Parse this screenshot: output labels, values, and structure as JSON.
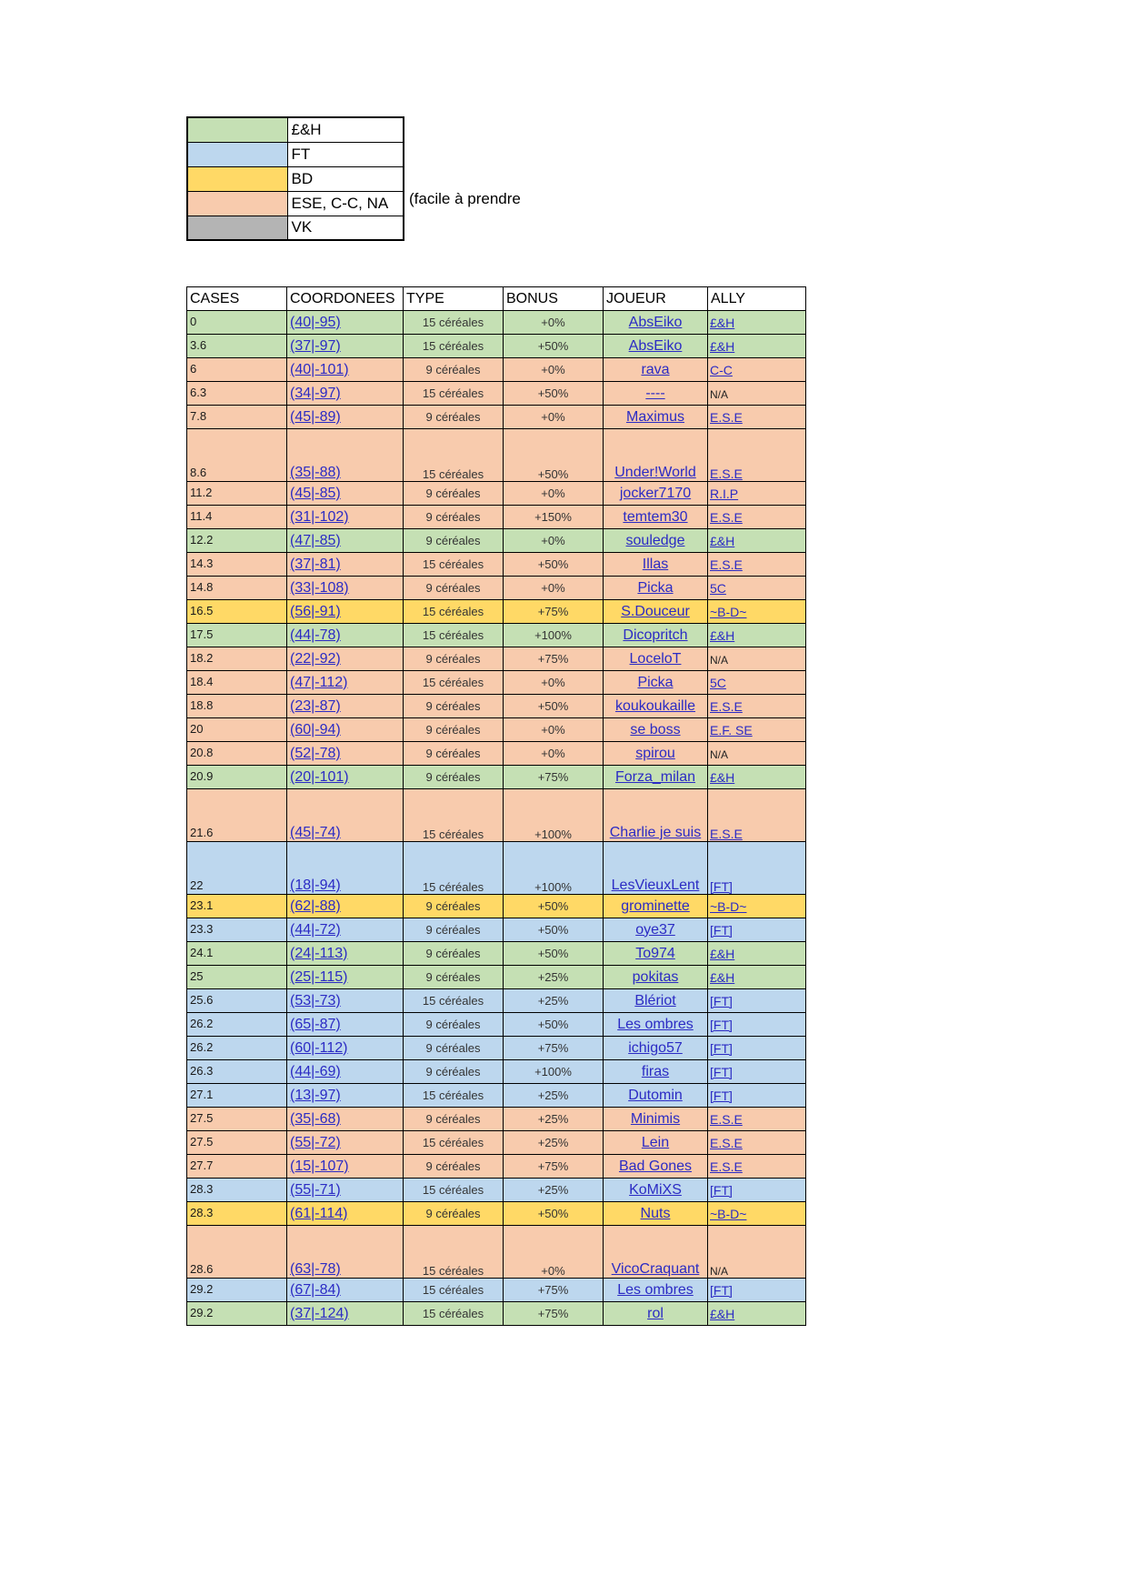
{
  "colors": {
    "green": "#c5e0b4",
    "blue": "#bdd7ee",
    "yellow": "#ffd966",
    "orange": "#f8cbad",
    "gray": "#b4b4b4",
    "link": "#2b2bc4",
    "border": "#000000"
  },
  "legend": {
    "note": "(facile à prendre",
    "items": [
      {
        "label": "£&H",
        "color": "green"
      },
      {
        "label": "FT",
        "color": "blue"
      },
      {
        "label": "BD",
        "color": "yellow"
      },
      {
        "label": "ESE, C-C, NA",
        "color": "orange"
      },
      {
        "label": "VK",
        "color": "gray"
      }
    ]
  },
  "table": {
    "columns": [
      "CASES",
      "COORDONEES",
      "TYPE",
      "BONUS",
      "JOUEUR",
      "ALLY"
    ],
    "rows": [
      {
        "cases": "0",
        "coord": "(40|-95)",
        "type": "15 céréales",
        "bonus": "+0%",
        "joueur": "AbsEiko",
        "ally": "£&H",
        "color": "green",
        "tall": false
      },
      {
        "cases": "3.6",
        "coord": "(37|-97)",
        "type": "15 céréales",
        "bonus": "+50%",
        "joueur": "AbsEiko",
        "ally": "£&H",
        "color": "green",
        "tall": false
      },
      {
        "cases": "6",
        "coord": "(40|-101)",
        "type": "9 céréales",
        "bonus": "+0%",
        "joueur": "rava",
        "ally": "C-C",
        "color": "orange",
        "tall": false
      },
      {
        "cases": "6.3",
        "coord": "(34|-97)",
        "type": "15 céréales",
        "bonus": "+50%",
        "joueur": "----",
        "ally": "N/A",
        "color": "orange",
        "tall": false
      },
      {
        "cases": "7.8",
        "coord": "(45|-89)",
        "type": "9 céréales",
        "bonus": "+0%",
        "joueur": "Maximus",
        "ally": "E.S.E",
        "color": "orange",
        "tall": false
      },
      {
        "cases": "8.6",
        "coord": "(35|-88)",
        "type": "15 céréales",
        "bonus": "+50%",
        "joueur": "Under!World",
        "ally": "E.S.E",
        "color": "orange",
        "tall": true
      },
      {
        "cases": "11.2",
        "coord": "(45|-85)",
        "type": "9 céréales",
        "bonus": "+0%",
        "joueur": "jocker7170",
        "ally": "R.I.P",
        "color": "orange",
        "tall": false
      },
      {
        "cases": "11.4",
        "coord": "(31|-102)",
        "type": "9 céréales",
        "bonus": "+150%",
        "joueur": "temtem30",
        "ally": "E.S.E",
        "color": "orange",
        "tall": false
      },
      {
        "cases": "12.2",
        "coord": "(47|-85)",
        "type": "9 céréales",
        "bonus": "+0%",
        "joueur": "souledge",
        "ally": "£&H",
        "color": "green",
        "tall": false
      },
      {
        "cases": "14.3",
        "coord": "(37|-81)",
        "type": "15 céréales",
        "bonus": "+50%",
        "joueur": "Illas",
        "ally": "E.S.E",
        "color": "orange",
        "tall": false
      },
      {
        "cases": "14.8",
        "coord": "(33|-108)",
        "type": "9 céréales",
        "bonus": "+0%",
        "joueur": "Picka",
        "ally": "5C",
        "color": "orange",
        "tall": false
      },
      {
        "cases": "16.5",
        "coord": "(56|-91)",
        "type": "15 céréales",
        "bonus": "+75%",
        "joueur": "S.Douceur",
        "ally": "~B-D~",
        "color": "yellow",
        "tall": false
      },
      {
        "cases": "17.5",
        "coord": "(44|-78)",
        "type": "15 céréales",
        "bonus": "+100%",
        "joueur": "Dicopritch",
        "ally": "£&H",
        "color": "green",
        "tall": false
      },
      {
        "cases": "18.2",
        "coord": "(22|-92)",
        "type": "9 céréales",
        "bonus": "+75%",
        "joueur": "LoceloT",
        "ally": "N/A",
        "color": "orange",
        "tall": false
      },
      {
        "cases": "18.4",
        "coord": "(47|-112)",
        "type": "15 céréales",
        "bonus": "+0%",
        "joueur": "Picka",
        "ally": "5C",
        "color": "orange",
        "tall": false
      },
      {
        "cases": "18.8",
        "coord": "(23|-87)",
        "type": "9 céréales",
        "bonus": "+50%",
        "joueur": "koukoukaille",
        "ally": "E.S.E",
        "color": "orange",
        "tall": false
      },
      {
        "cases": "20",
        "coord": "(60|-94)",
        "type": "9 céréales",
        "bonus": "+0%",
        "joueur": "se boss",
        "ally": "E.F. SE",
        "color": "orange",
        "tall": false
      },
      {
        "cases": "20.8",
        "coord": "(52|-78)",
        "type": "9 céréales",
        "bonus": "+0%",
        "joueur": "spirou",
        "ally": "N/A",
        "color": "orange",
        "tall": false
      },
      {
        "cases": "20.9",
        "coord": "(20|-101)",
        "type": "9 céréales",
        "bonus": "+75%",
        "joueur": "Forza_milan",
        "ally": "£&H",
        "color": "green",
        "tall": false
      },
      {
        "cases": "21.6",
        "coord": "(45|-74)",
        "type": "15 céréales",
        "bonus": "+100%",
        "joueur": "Charlie je suis",
        "ally": "E.S.E",
        "color": "orange",
        "tall": true
      },
      {
        "cases": "22",
        "coord": "(18|-94)",
        "type": "15 céréales",
        "bonus": "+100%",
        "joueur": "LesVieuxLent",
        "ally": "[FT]",
        "color": "blue",
        "tall": true
      },
      {
        "cases": "23.1",
        "coord": "(62|-88)",
        "type": "9 céréales",
        "bonus": "+50%",
        "joueur": "grominette",
        "ally": "~B-D~",
        "color": "yellow",
        "tall": false
      },
      {
        "cases": "23.3",
        "coord": "(44|-72)",
        "type": "9 céréales",
        "bonus": "+50%",
        "joueur": "oye37",
        "ally": "[FT]",
        "color": "blue",
        "tall": false
      },
      {
        "cases": "24.1",
        "coord": "(24|-113)",
        "type": "9 céréales",
        "bonus": "+50%",
        "joueur": "To974",
        "ally": "£&H",
        "color": "green",
        "tall": false
      },
      {
        "cases": "25",
        "coord": "(25|-115)",
        "type": "9 céréales",
        "bonus": "+25%",
        "joueur": "pokitas",
        "ally": "£&H",
        "color": "green",
        "tall": false
      },
      {
        "cases": "25.6",
        "coord": "(53|-73)",
        "type": "15 céréales",
        "bonus": "+25%",
        "joueur": "Blériot",
        "ally": "[FT]",
        "color": "blue",
        "tall": false
      },
      {
        "cases": "26.2",
        "coord": "(65|-87)",
        "type": "9 céréales",
        "bonus": "+50%",
        "joueur": "Les ombres",
        "ally": "[FT]",
        "color": "blue",
        "tall": false
      },
      {
        "cases": "26.2",
        "coord": "(60|-112)",
        "type": "9 céréales",
        "bonus": "+75%",
        "joueur": "ichigo57",
        "ally": "[FT]",
        "color": "blue",
        "tall": false
      },
      {
        "cases": "26.3",
        "coord": "(44|-69)",
        "type": "9 céréales",
        "bonus": "+100%",
        "joueur": "firas",
        "ally": "[FT]",
        "color": "blue",
        "tall": false
      },
      {
        "cases": "27.1",
        "coord": "(13|-97)",
        "type": "15 céréales",
        "bonus": "+25%",
        "joueur": "Dutomin",
        "ally": "[FT]",
        "color": "blue",
        "tall": false
      },
      {
        "cases": "27.5",
        "coord": "(35|-68)",
        "type": "9 céréales",
        "bonus": "+25%",
        "joueur": "Minimis",
        "ally": "E.S.E",
        "color": "orange",
        "tall": false
      },
      {
        "cases": "27.5",
        "coord": "(55|-72)",
        "type": "15 céréales",
        "bonus": "+25%",
        "joueur": "Lein",
        "ally": "E.S.E",
        "color": "orange",
        "tall": false
      },
      {
        "cases": "27.7",
        "coord": "(15|-107)",
        "type": "9 céréales",
        "bonus": "+75%",
        "joueur": "Bad Gones",
        "ally": "E.S.E",
        "color": "orange",
        "tall": false
      },
      {
        "cases": "28.3",
        "coord": "(55|-71)",
        "type": "15 céréales",
        "bonus": "+25%",
        "joueur": "KoMiXS",
        "ally": "[FT]",
        "color": "blue",
        "tall": false
      },
      {
        "cases": "28.3",
        "coord": "(61|-114)",
        "type": "9 céréales",
        "bonus": "+50%",
        "joueur": "Nuts",
        "ally": "~B-D~",
        "color": "yellow",
        "tall": false
      },
      {
        "cases": "28.6",
        "coord": "(63|-78)",
        "type": "15 céréales",
        "bonus": "+0%",
        "joueur": "VicoCraquant",
        "ally": "N/A",
        "color": "orange",
        "tall": true
      },
      {
        "cases": "29.2",
        "coord": "(67|-84)",
        "type": "15 céréales",
        "bonus": "+75%",
        "joueur": "Les ombres",
        "ally": "[FT]",
        "color": "blue",
        "tall": false
      },
      {
        "cases": "29.2",
        "coord": "(37|-124)",
        "type": "15 céréales",
        "bonus": "+75%",
        "joueur": "rol",
        "ally": "£&H",
        "color": "green",
        "tall": false
      }
    ]
  }
}
